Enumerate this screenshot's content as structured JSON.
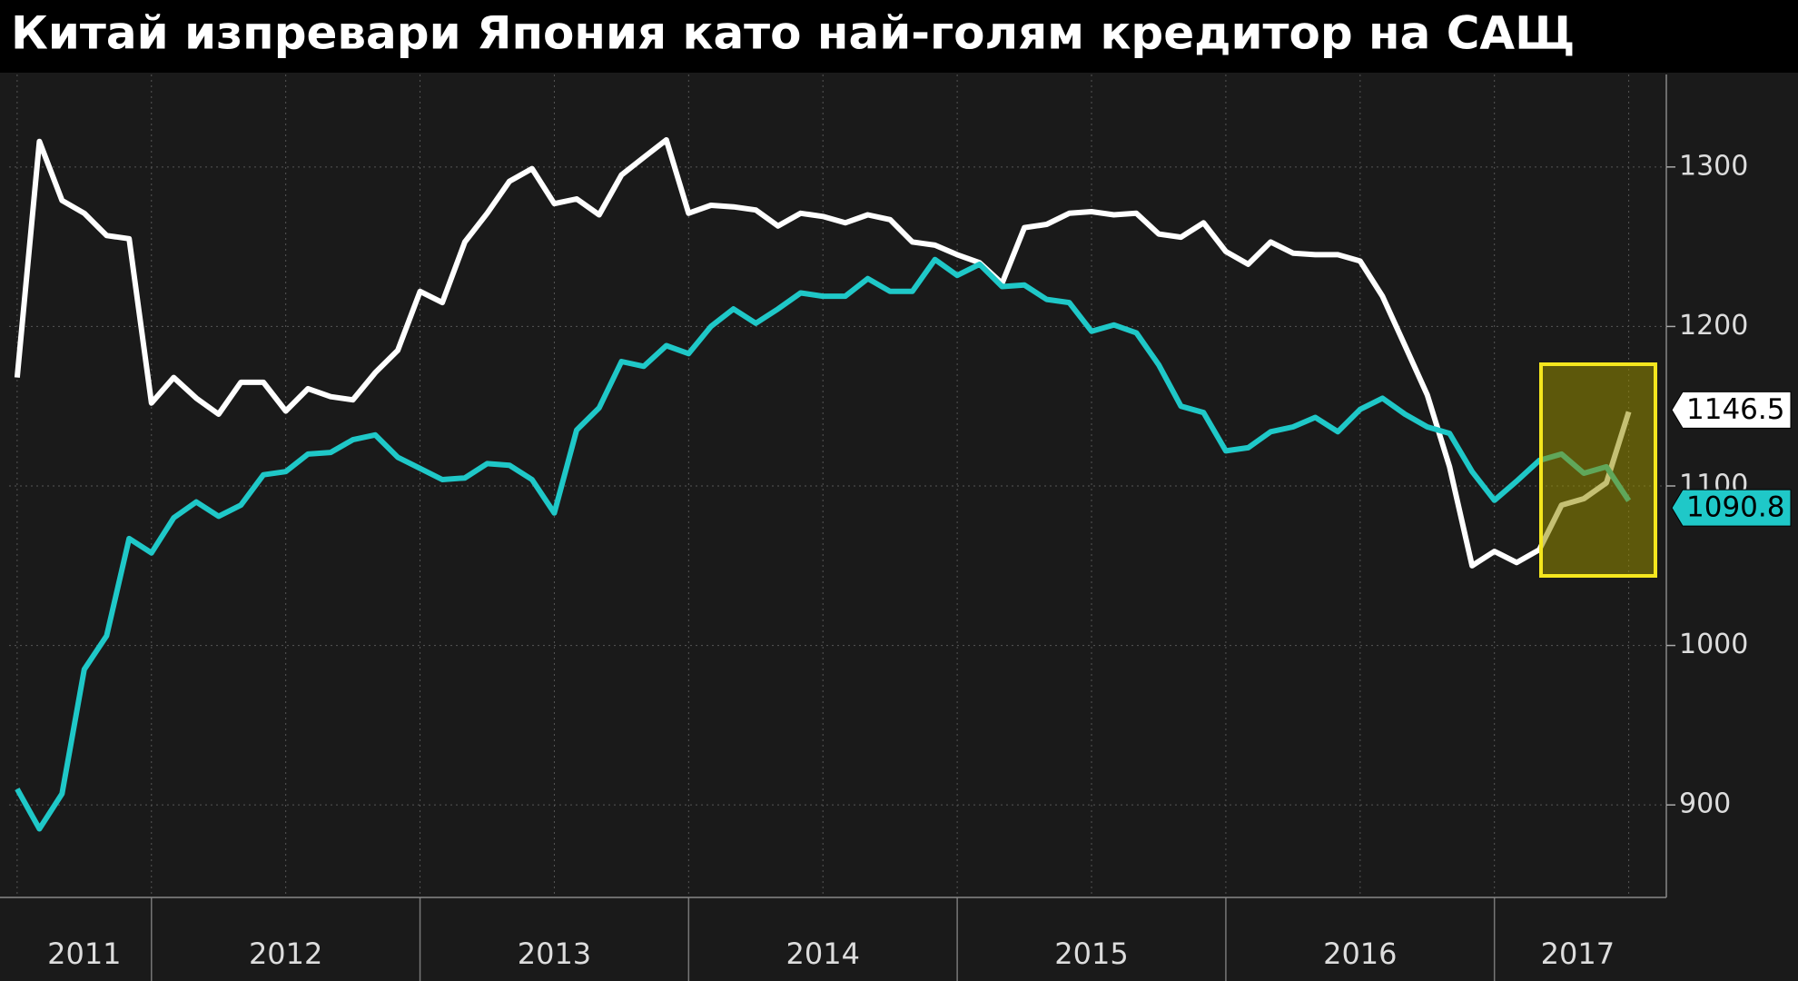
{
  "chart_data": {
    "type": "line",
    "title": "Китай изпревари Япония като най-голям кредитор на САЩ",
    "x": [
      2011.5,
      2011.583,
      2011.667,
      2011.75,
      2011.833,
      2011.917,
      2012,
      2012.083,
      2012.167,
      2012.25,
      2012.333,
      2012.417,
      2012.5,
      2012.583,
      2012.667,
      2012.75,
      2012.833,
      2012.917,
      2013,
      2013.083,
      2013.167,
      2013.25,
      2013.333,
      2013.417,
      2013.5,
      2013.583,
      2013.667,
      2013.75,
      2013.833,
      2013.917,
      2014,
      2014.083,
      2014.167,
      2014.25,
      2014.333,
      2014.417,
      2014.5,
      2014.583,
      2014.667,
      2014.75,
      2014.833,
      2014.917,
      2015,
      2015.083,
      2015.167,
      2015.25,
      2015.333,
      2015.417,
      2015.5,
      2015.583,
      2015.667,
      2015.75,
      2015.833,
      2015.917,
      2016,
      2016.083,
      2016.167,
      2016.25,
      2016.333,
      2016.417,
      2016.5,
      2016.583,
      2016.667,
      2016.75,
      2016.833,
      2016.917,
      2017,
      2017.083,
      2017.167,
      2017.25,
      2017.333,
      2017.417,
      2017.5
    ],
    "series": [
      {
        "color": "#ffffff",
        "values": [
          1168,
          1316,
          1279,
          1271,
          1257,
          1255,
          1152,
          1168,
          1155,
          1145,
          1165,
          1165,
          1147,
          1161,
          1156,
          1154,
          1171,
          1185,
          1222,
          1215,
          1253,
          1271,
          1291,
          1299,
          1277,
          1280,
          1270,
          1295,
          1306,
          1317,
          1271,
          1276,
          1275,
          1273,
          1263,
          1271,
          1269,
          1265,
          1270,
          1267,
          1253,
          1251,
          1245,
          1240,
          1227,
          1262,
          1264,
          1271,
          1272,
          1270,
          1271,
          1258,
          1256,
          1265,
          1247,
          1239,
          1253,
          1246,
          1245,
          1245,
          1241,
          1219,
          1188,
          1157,
          1112,
          1050,
          1059,
          1052,
          1060,
          1088,
          1092,
          1102,
          1146.5
        ]
      },
      {
        "color": "#1fc8c8",
        "values": [
          910,
          885,
          907,
          985,
          1006,
          1067,
          1058,
          1080,
          1090,
          1081,
          1088,
          1107,
          1109,
          1120,
          1121,
          1129,
          1132,
          1118,
          1111,
          1104,
          1105,
          1114,
          1113,
          1104,
          1083,
          1135,
          1149,
          1178,
          1175,
          1188,
          1183,
          1200,
          1211,
          1202,
          1211,
          1221,
          1219,
          1219,
          1230,
          1222,
          1222,
          1242,
          1232,
          1239,
          1225,
          1226,
          1217,
          1215,
          1197,
          1201,
          1196,
          1176,
          1150,
          1146,
          1122,
          1124,
          1134,
          1137,
          1143,
          1134,
          1148,
          1155,
          1145,
          1137,
          1133,
          1109,
          1091,
          1103,
          1116,
          1120,
          1108,
          1112,
          1090.8
        ]
      }
    ],
    "xlim": [
      2011.47,
      2017.64
    ],
    "xticks": [
      {
        "value": 2011.75,
        "label": "2011"
      },
      {
        "value": 2012.5,
        "label": "2012"
      },
      {
        "value": 2013.5,
        "label": "2013"
      },
      {
        "value": 2014.5,
        "label": "2014"
      },
      {
        "value": 2015.5,
        "label": "2015"
      },
      {
        "value": 2016.5,
        "label": "2016"
      },
      {
        "value": 2017.31,
        "label": "2017"
      }
    ],
    "ylim": [
      842,
      1358
    ],
    "yticks": [
      900,
      1000,
      1100,
      1200,
      1300
    ],
    "grid": true
  }
}
